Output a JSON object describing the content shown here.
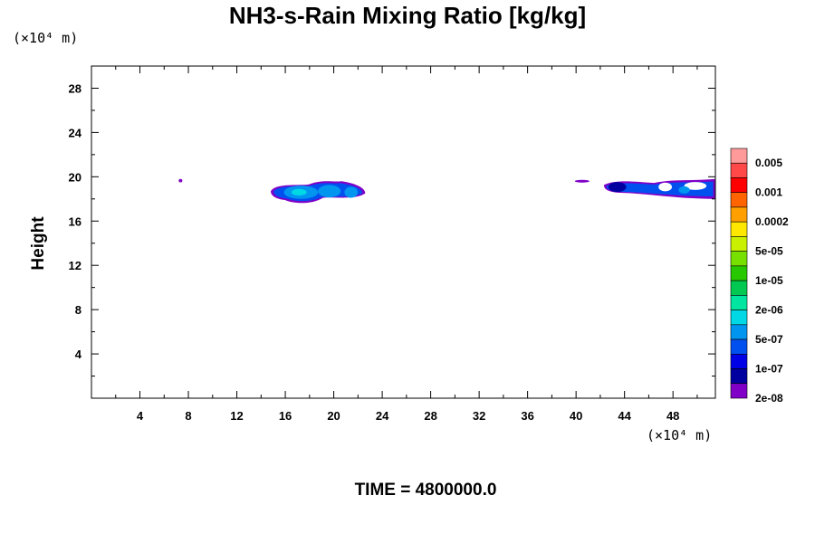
{
  "chart_data": {
    "type": "heatmap",
    "title": "NH3-s-Rain Mixing Ratio [kg/kg]",
    "ylabel": "Height",
    "xlabel": "",
    "x_unit": "(×10⁴ m)",
    "y_unit": "(×10⁴ m)",
    "xlim": [
      0,
      51.5
    ],
    "ylim": [
      0,
      30
    ],
    "x_ticks": [
      4,
      8,
      12,
      16,
      20,
      24,
      28,
      32,
      36,
      40,
      44,
      48
    ],
    "y_ticks": [
      4,
      8,
      12,
      16,
      20,
      24,
      28
    ],
    "colorbar": {
      "labels": [
        "0.005",
        "0.001",
        "0.0002",
        "5e-05",
        "1e-05",
        "2e-06",
        "5e-07",
        "1e-07",
        "2e-08"
      ],
      "colors": [
        "#ff9a9a",
        "#ff4848",
        "#ff0000",
        "#ff6400",
        "#ffa000",
        "#ffe800",
        "#c8f000",
        "#78e000",
        "#28c800",
        "#00c850",
        "#00e6a0",
        "#00d8e6",
        "#0096f0",
        "#0050f0",
        "#0000e6",
        "#0000a0",
        "#8000c8"
      ]
    },
    "regions": [
      {
        "name": "speck",
        "x": [
          7.2,
          7.5
        ],
        "y": [
          19.5,
          19.8
        ],
        "level": "2e-08"
      },
      {
        "name": "central cloud",
        "x": [
          14.8,
          22.6
        ],
        "y": [
          17.6,
          19.6
        ],
        "level": "5e-07"
      },
      {
        "name": "right cloud",
        "x": [
          42.3,
          51.5
        ],
        "y": [
          18.0,
          19.8
        ],
        "level": "1e-07"
      },
      {
        "name": "small specks",
        "x": [
          39.9,
          41.1
        ],
        "y": [
          19.5,
          19.7
        ],
        "level": "2e-08"
      }
    ]
  },
  "footer": {
    "time_label": "TIME = 4800000.0"
  }
}
